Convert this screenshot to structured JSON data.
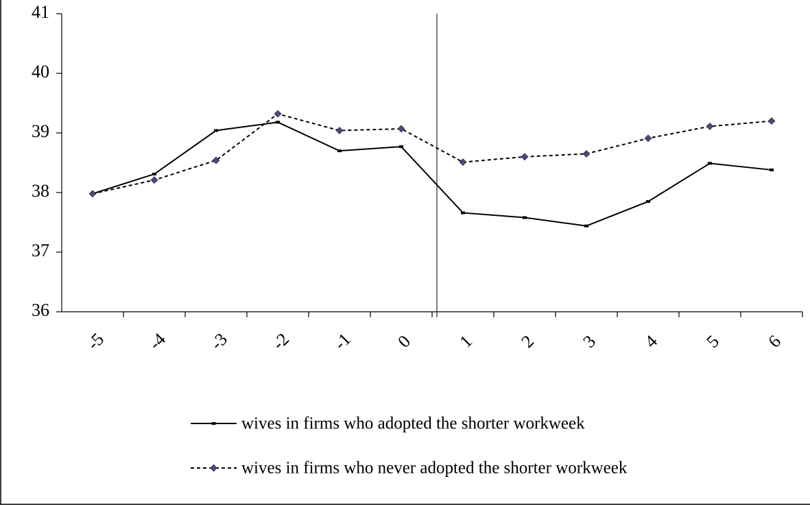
{
  "chart_data": {
    "type": "line",
    "categories": [
      "-5",
      "-4",
      "-3",
      "-2",
      "-1",
      "0",
      "1",
      "2",
      "3",
      "4",
      "5",
      "6"
    ],
    "series": [
      {
        "name": "wives in firms who adopted the shorter workweek",
        "color": "#000000",
        "line_style": "solid",
        "marker": "dash",
        "marker_color": "#000000",
        "values": [
          37.98,
          38.31,
          39.04,
          39.18,
          38.7,
          38.77,
          37.66,
          37.58,
          37.44,
          37.85,
          38.49,
          38.38
        ]
      },
      {
        "name": "wives in firms who never adopted the shorter workweek",
        "color": "#000000",
        "line_style": "dotted",
        "marker": "diamond",
        "marker_color": "#4a4a80",
        "values": [
          37.98,
          38.21,
          38.54,
          39.32,
          39.04,
          39.07,
          38.51,
          38.6,
          38.65,
          38.91,
          39.11,
          39.2
        ]
      }
    ],
    "ylim": [
      36,
      41
    ],
    "yticks": [
      36,
      37,
      38,
      39,
      40,
      41
    ],
    "grid": false,
    "legend": "bottom"
  }
}
